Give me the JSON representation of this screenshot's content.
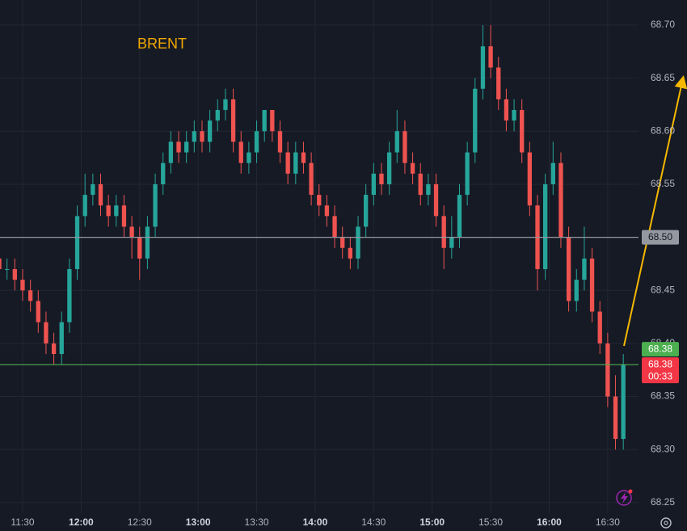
{
  "chart_data": {
    "type": "candlestick",
    "title": "BRENT",
    "title_color": "#f2a900",
    "up_color": "#26a69a",
    "down_color": "#ef5350",
    "grid": true,
    "x": [
      678,
      682,
      686,
      690,
      694,
      698,
      702,
      706,
      710,
      714,
      718,
      722,
      726,
      730,
      734,
      738,
      742,
      746,
      750,
      754,
      758,
      762,
      766,
      770,
      774,
      778,
      782,
      786,
      790,
      794,
      798,
      802,
      806,
      810,
      814,
      818,
      822,
      826,
      830,
      834,
      838,
      842,
      846,
      850,
      854,
      858,
      862,
      866,
      870,
      874,
      878,
      882,
      886,
      890,
      894,
      898,
      902,
      906,
      910,
      914,
      918,
      922,
      926,
      930,
      934,
      938,
      942,
      946,
      950,
      954,
      958,
      962,
      966,
      970,
      974,
      978,
      982,
      986,
      990,
      994,
      998
    ],
    "open": [
      68.48,
      68.47,
      68.47,
      68.46,
      68.45,
      68.44,
      68.42,
      68.4,
      68.39,
      68.42,
      68.47,
      68.52,
      68.54,
      68.55,
      68.53,
      68.52,
      68.53,
      68.51,
      68.5,
      68.48,
      68.51,
      68.55,
      68.57,
      68.59,
      68.58,
      68.59,
      68.6,
      68.59,
      68.61,
      68.62,
      68.63,
      68.59,
      68.57,
      68.58,
      68.6,
      68.62,
      68.6,
      68.58,
      68.56,
      68.58,
      68.57,
      68.54,
      68.53,
      68.52,
      68.5,
      68.49,
      68.48,
      68.51,
      68.54,
      68.56,
      68.55,
      68.58,
      68.6,
      68.57,
      68.56,
      68.54,
      68.55,
      68.52,
      68.49,
      68.5,
      68.54,
      68.58,
      68.64,
      68.68,
      68.66,
      68.63,
      68.61,
      68.62,
      68.58,
      68.53,
      68.47,
      68.55,
      68.57,
      68.5,
      68.44,
      68.46,
      68.48,
      68.43,
      68.4,
      68.35,
      68.31
    ],
    "high": [
      68.49,
      68.48,
      68.48,
      68.47,
      68.46,
      68.45,
      68.43,
      68.41,
      68.43,
      68.48,
      68.53,
      68.56,
      68.56,
      68.56,
      68.54,
      68.54,
      68.54,
      68.52,
      68.51,
      68.52,
      68.56,
      68.58,
      68.6,
      68.6,
      68.6,
      68.61,
      68.61,
      68.62,
      68.63,
      68.64,
      68.64,
      68.6,
      68.59,
      68.61,
      68.62,
      68.62,
      68.61,
      68.59,
      68.59,
      68.59,
      68.58,
      68.55,
      68.54,
      68.53,
      68.51,
      68.5,
      68.52,
      68.55,
      68.57,
      68.57,
      68.59,
      68.62,
      68.61,
      68.58,
      68.57,
      68.56,
      68.56,
      68.53,
      68.52,
      68.55,
      68.59,
      68.65,
      68.7,
      68.7,
      68.67,
      68.64,
      68.63,
      68.63,
      68.59,
      68.54,
      68.56,
      68.59,
      68.58,
      68.51,
      68.47,
      68.51,
      68.49,
      68.44,
      68.41,
      68.37,
      68.39
    ],
    "low": [
      68.46,
      68.46,
      68.45,
      68.44,
      68.43,
      68.41,
      68.39,
      68.38,
      68.38,
      68.41,
      68.46,
      68.51,
      68.53,
      68.52,
      68.51,
      68.51,
      68.5,
      68.48,
      68.46,
      68.47,
      68.5,
      68.54,
      68.56,
      68.57,
      68.57,
      68.58,
      68.58,
      68.58,
      68.6,
      68.61,
      68.58,
      68.56,
      68.56,
      68.57,
      68.59,
      68.59,
      68.57,
      68.55,
      68.55,
      68.56,
      68.53,
      68.52,
      68.51,
      68.49,
      68.48,
      68.47,
      68.47,
      68.5,
      68.53,
      68.54,
      68.54,
      68.57,
      68.56,
      68.55,
      68.53,
      68.53,
      68.51,
      68.47,
      68.48,
      68.49,
      68.53,
      68.57,
      68.63,
      68.65,
      68.62,
      68.6,
      68.6,
      68.57,
      68.52,
      68.45,
      68.46,
      68.54,
      68.49,
      68.43,
      68.43,
      68.45,
      68.42,
      68.39,
      68.34,
      68.3,
      68.3
    ],
    "close": [
      68.47,
      68.47,
      68.46,
      68.45,
      68.44,
      68.42,
      68.4,
      68.39,
      68.42,
      68.47,
      68.52,
      68.54,
      68.55,
      68.53,
      68.52,
      68.53,
      68.51,
      68.5,
      68.48,
      68.51,
      68.55,
      68.57,
      68.59,
      68.58,
      68.59,
      68.6,
      68.59,
      68.61,
      68.62,
      68.63,
      68.59,
      68.57,
      68.58,
      68.6,
      68.62,
      68.6,
      68.58,
      68.56,
      68.58,
      68.57,
      68.54,
      68.53,
      68.52,
      68.5,
      68.49,
      68.48,
      68.51,
      68.54,
      68.56,
      68.55,
      68.58,
      68.6,
      68.57,
      68.56,
      68.54,
      68.55,
      68.52,
      68.49,
      68.5,
      68.54,
      68.58,
      68.64,
      68.68,
      68.66,
      68.63,
      68.61,
      68.62,
      68.58,
      68.53,
      68.47,
      68.55,
      68.57,
      68.5,
      68.44,
      68.46,
      68.48,
      68.43,
      68.4,
      68.35,
      68.31,
      68.38
    ],
    "xlim": [
      678.4,
      1005.8
    ],
    "xticks": [
      {
        "value": 690,
        "label": "11:30"
      },
      {
        "value": 720,
        "label": "12:00"
      },
      {
        "value": 750,
        "label": "12:30"
      },
      {
        "value": 780,
        "label": "13:00"
      },
      {
        "value": 810,
        "label": "13:30"
      },
      {
        "value": 840,
        "label": "14:00"
      },
      {
        "value": 870,
        "label": "14:30"
      },
      {
        "value": 900,
        "label": "15:00"
      },
      {
        "value": 930,
        "label": "15:30"
      },
      {
        "value": 960,
        "label": "16:00"
      },
      {
        "value": 990,
        "label": "16:30"
      }
    ],
    "ylim": [
      68.24,
      68.7236
    ],
    "yticks": [
      {
        "value": 68.25,
        "label": "68.25"
      },
      {
        "value": 68.3,
        "label": "68.30"
      },
      {
        "value": 68.35,
        "label": "68.35"
      },
      {
        "value": 68.4,
        "label": "68.40"
      },
      {
        "value": 68.45,
        "label": "68.45"
      },
      {
        "value": 68.5,
        "label": "68.50"
      },
      {
        "value": 68.55,
        "label": "68.55"
      },
      {
        "value": 68.6,
        "label": "68.60"
      },
      {
        "value": 68.65,
        "label": "68.65"
      },
      {
        "value": 68.7,
        "label": "68.70"
      }
    ],
    "price_lines": [
      {
        "value": 68.5,
        "label": "68.50",
        "color": "#9598a1"
      },
      {
        "value": 68.38,
        "label": "68.38",
        "color": "#4caf50"
      }
    ],
    "last_price": {
      "value": 68.38,
      "label": "68.38",
      "countdown": "00:33",
      "color": "#f23645"
    }
  }
}
